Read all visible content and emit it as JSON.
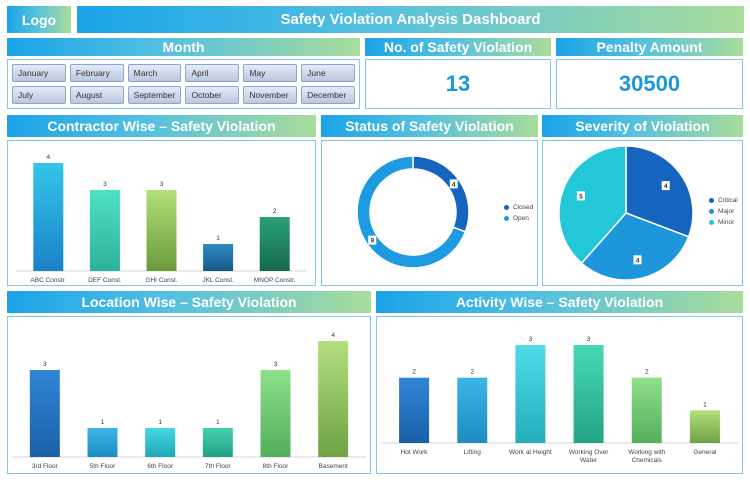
{
  "header": {
    "logo": "Logo",
    "title": "Safety Violation Analysis Dashboard"
  },
  "month": {
    "title": "Month",
    "items": [
      "January",
      "February",
      "March",
      "April",
      "May",
      "June",
      "July",
      "August",
      "September",
      "October",
      "November",
      "December"
    ]
  },
  "kpi_violations": {
    "title": "No. of Safety Violation",
    "value": "13"
  },
  "kpi_penalty": {
    "title": "Penalty Amount",
    "value": "30500"
  },
  "contractor": {
    "title": "Contractor Wise – Safety Violation"
  },
  "status": {
    "title": "Status of Safety Violation",
    "legend": [
      "Closed",
      "Open"
    ]
  },
  "severity": {
    "title": "Severity of Violation",
    "legend": [
      "Critical",
      "Major",
      "Minor"
    ]
  },
  "location": {
    "title": "Location Wise – Safety Violation"
  },
  "activity": {
    "title": "Activity Wise – Safety Violation"
  },
  "chart_data": [
    {
      "id": "contractor",
      "type": "bar",
      "categories": [
        "ABC Constr.",
        "DEF Const.",
        "GHI Const.",
        "JKL Const.",
        "MNOP Constr."
      ],
      "values": [
        4,
        3,
        3,
        1,
        2
      ],
      "colors": [
        [
          "#33c6ea",
          "#1a82c8"
        ],
        [
          "#4fe1c2",
          "#2bb39a"
        ],
        [
          "#b4df7a",
          "#6a9a3a"
        ],
        [
          "#2f8ac0",
          "#155a8a"
        ],
        [
          "#2aa07a",
          "#16684e"
        ]
      ]
    },
    {
      "id": "status",
      "type": "pie",
      "donut": true,
      "labels": [
        "Closed",
        "Open"
      ],
      "values": [
        4,
        9
      ],
      "colors": [
        "#1565c0",
        "#1e9ae0"
      ]
    },
    {
      "id": "severity",
      "type": "pie",
      "labels": [
        "Critical",
        "Major",
        "Minor"
      ],
      "values": [
        4,
        4,
        5
      ],
      "colors": [
        "#1565c0",
        "#1e96dc",
        "#22c7d8"
      ]
    },
    {
      "id": "location",
      "type": "bar",
      "categories": [
        "3rd Floor",
        "5th Floor",
        "6th Floor",
        "7th Floor",
        "8th Floor",
        "Basement"
      ],
      "values": [
        3,
        1,
        1,
        1,
        3,
        4
      ],
      "colors": [
        [
          "#2f86d6",
          "#1a5fa8"
        ],
        [
          "#3ab6e6",
          "#1f8cc0"
        ],
        [
          "#46d7e2",
          "#20a8b8"
        ],
        [
          "#45d1b0",
          "#22a086"
        ],
        [
          "#8ee08a",
          "#52ae5a"
        ],
        [
          "#b3df7d",
          "#6ea244"
        ]
      ]
    },
    {
      "id": "activity",
      "type": "bar",
      "categories": [
        "Hot Work",
        "Lifting",
        "Work at Height",
        "Working Over Water",
        "Working with Chemicals",
        "General"
      ],
      "values": [
        2,
        2,
        3,
        3,
        2,
        1
      ],
      "colors": [
        [
          "#2f86d6",
          "#1a5fa8"
        ],
        [
          "#3ab6e6",
          "#1f8cc0"
        ],
        [
          "#4fdbe8",
          "#24aebc"
        ],
        [
          "#46d9b4",
          "#23a487"
        ],
        [
          "#90e08a",
          "#55ae5c"
        ],
        [
          "#b4df7a",
          "#70a244"
        ]
      ]
    }
  ]
}
